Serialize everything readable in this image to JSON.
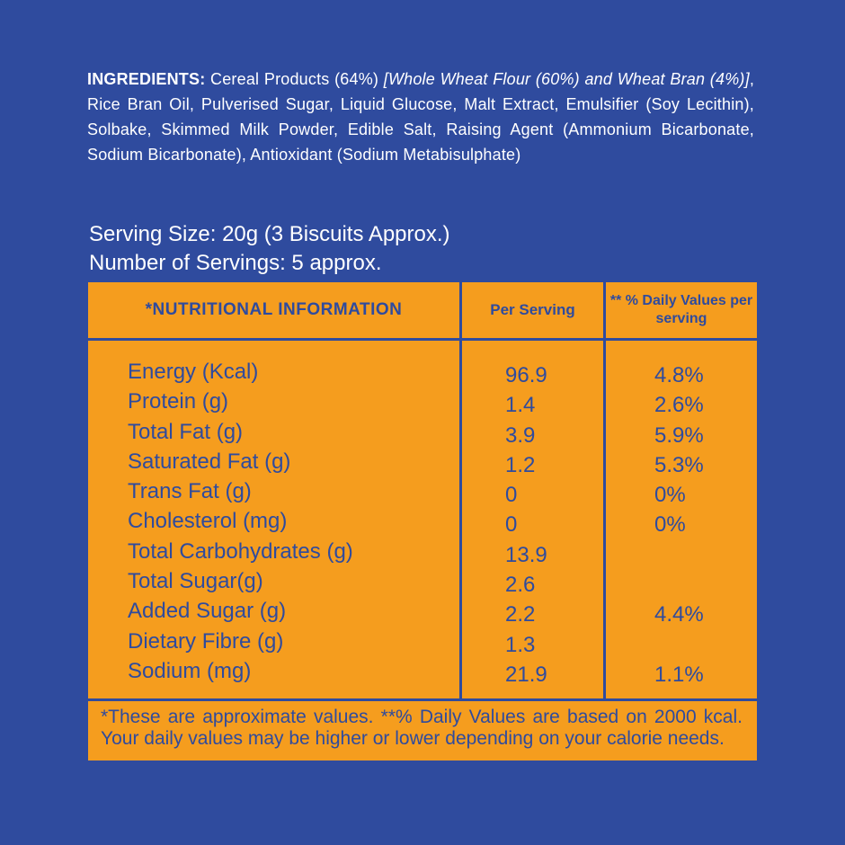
{
  "ingredients": {
    "label": "INGREDIENTS:",
    "part1": " Cereal Products (64%) ",
    "italic": "[Whole Wheat Flour (60%) and Wheat Bran (4%)]",
    "part2": ", Rice Bran Oil, Pulverised Sugar, Liquid Glucose, Malt Extract, Emulsifier (Soy Lecithin), Solbake, Skimmed Milk Powder, Edible Salt, Raising Agent (Ammonium Bicarbonate, Sodium Bicarbonate), Antioxidant (Sodium Metabisulphate)"
  },
  "serving": {
    "size": "Serving Size: 20g (3 Biscuits Approx.)",
    "count": "Number of Servings: 5 approx."
  },
  "table": {
    "headers": [
      "*NUTRITIONAL INFORMATION",
      "Per Serving",
      "** % Daily Values per serving"
    ],
    "rows": [
      {
        "nutrient": "Energy (Kcal)",
        "per_serving": "96.9",
        "daily_value": "4.8%"
      },
      {
        "nutrient": "Protein (g)",
        "per_serving": "1.4",
        "daily_value": "2.6%"
      },
      {
        "nutrient": "Total Fat (g)",
        "per_serving": "3.9",
        "daily_value": "5.9%"
      },
      {
        "nutrient": "Saturated Fat (g)",
        "per_serving": "1.2",
        "daily_value": "5.3%"
      },
      {
        "nutrient": "Trans Fat (g)",
        "per_serving": "0",
        "daily_value": "0%"
      },
      {
        "nutrient": "Cholesterol (mg)",
        "per_serving": "0",
        "daily_value": "0%"
      },
      {
        "nutrient": "Total Carbohydrates (g)",
        "per_serving": "13.9",
        "daily_value": ""
      },
      {
        "nutrient": "Total Sugar(g)",
        "per_serving": "2.6",
        "daily_value": ""
      },
      {
        "nutrient": "Added Sugar (g)",
        "per_serving": "2.2",
        "daily_value": "4.4%"
      },
      {
        "nutrient": "Dietary Fibre (g)",
        "per_serving": "1.3",
        "daily_value": ""
      },
      {
        "nutrient": "Sodium (mg)",
        "per_serving": "21.9",
        "daily_value": "1.1%"
      }
    ],
    "footnote": "*These are approximate values. **% Daily Values are based on 2000 kcal. Your daily values may be higher or lower depending on your calorie needs."
  },
  "colors": {
    "background": "#2f4b9e",
    "table": "#f59d1e",
    "text_on_table": "#2f4b9e",
    "text_on_bg": "#ffffff"
  }
}
